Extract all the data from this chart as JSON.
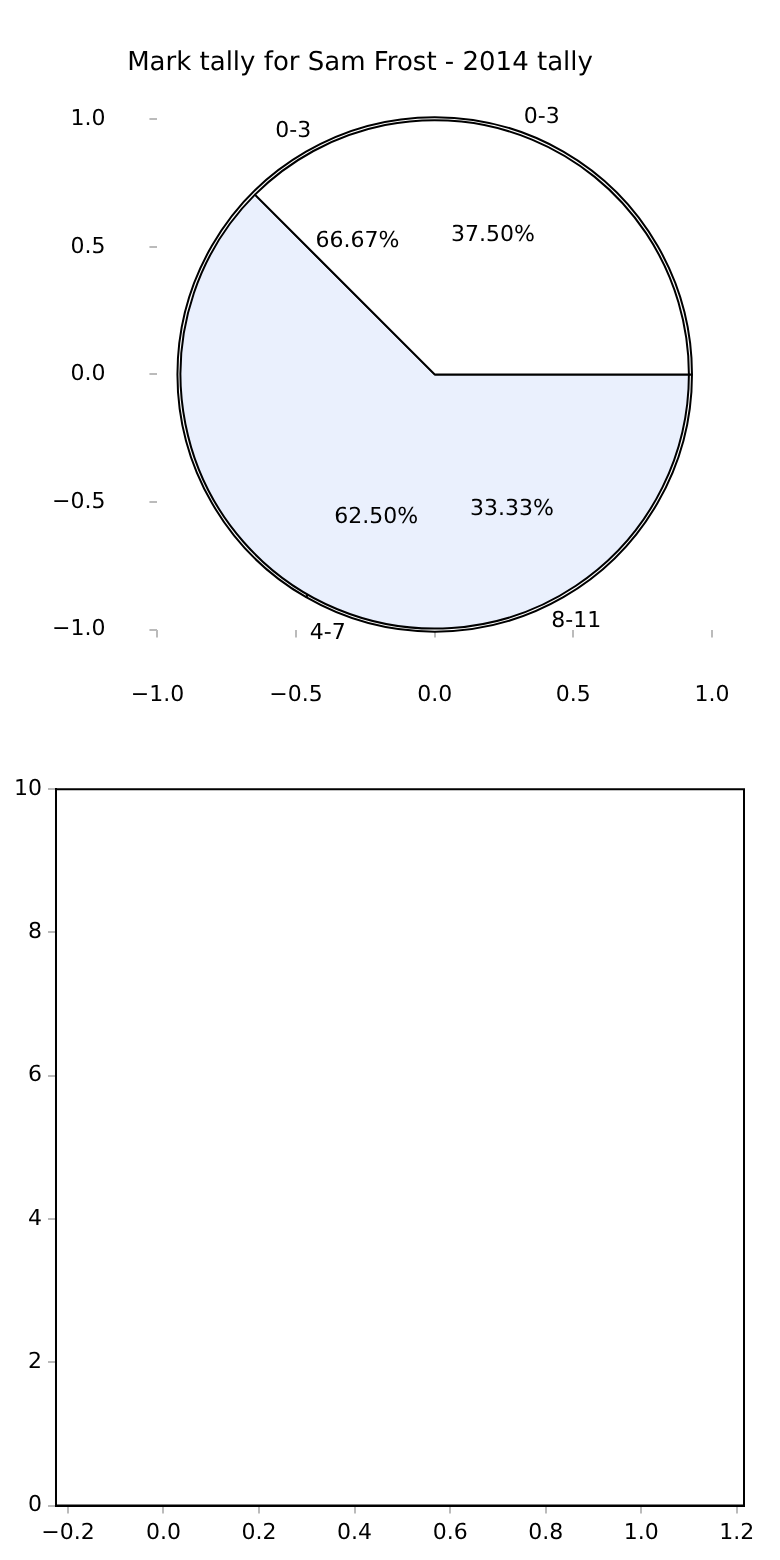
{
  "chart_data": [
    {
      "type": "scatter",
      "title": "Mark tally for Sam Frost - 2014 tally",
      "xlim": [
        -1,
        1
      ],
      "ylim": [
        -1,
        1
      ],
      "xticks": [
        {
          "value": -1,
          "label": "−1.0"
        },
        {
          "value": -0.5,
          "label": "−0.5"
        },
        {
          "value": 0,
          "label": "0.0"
        },
        {
          "value": 0.5,
          "label": "0.5"
        },
        {
          "value": 1,
          "label": "1.0"
        }
      ],
      "yticks": [
        {
          "value": -1,
          "label": "−1.0"
        },
        {
          "value": -0.5,
          "label": "−0.5"
        },
        {
          "value": 0,
          "label": "0.0"
        },
        {
          "value": 0.5,
          "label": "0.5"
        },
        {
          "value": 1,
          "label": "1.0"
        }
      ]
    },
    {
      "type": "pie",
      "categories": [
        "0-3",
        "4-7"
      ],
      "values": [
        37.5,
        62.5
      ],
      "colors": [
        "#ffffff",
        "#eaf0fd"
      ],
      "value_labels": [
        "37.50%",
        "62.50%"
      ]
    },
    {
      "type": "pie",
      "categories": [
        "0-3",
        "8-11"
      ],
      "values": [
        66.67,
        33.33
      ],
      "colors": [
        "#ffffff",
        "#ffffff"
      ],
      "value_labels": [
        "66.67%",
        "33.33%"
      ]
    },
    {
      "type": "scatter",
      "xlim": [
        -0.225,
        1.215
      ],
      "ylim": [
        0,
        10
      ],
      "xticks": [
        {
          "value": -0.2,
          "label": "−0.2"
        },
        {
          "value": 0,
          "label": "0.0"
        },
        {
          "value": 0.2,
          "label": "0.2"
        },
        {
          "value": 0.4,
          "label": "0.4"
        },
        {
          "value": 0.6,
          "label": "0.6"
        },
        {
          "value": 0.8,
          "label": "0.8"
        },
        {
          "value": 1,
          "label": "1.0"
        },
        {
          "value": 1.2,
          "label": "1.2"
        }
      ],
      "yticks": [
        0,
        2,
        4,
        6,
        8,
        10
      ]
    }
  ]
}
